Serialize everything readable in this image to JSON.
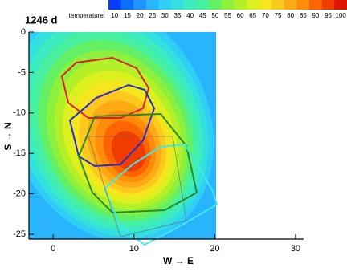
{
  "chart_data": {
    "type": "contour",
    "title": "1246 d",
    "x_label": "W → E",
    "y_label": "S → N",
    "legend_label": "temperature:",
    "levels": [
      10,
      15,
      20,
      25,
      30,
      35,
      40,
      45,
      50,
      55,
      60,
      65,
      70,
      75,
      80,
      85,
      90,
      95,
      100
    ],
    "colors": [
      "#0a3cff",
      "#0a6eff",
      "#1e96ff",
      "#28b4ff",
      "#30cdf5",
      "#32e0e0",
      "#3cecc0",
      "#46f0a0",
      "#64f064",
      "#8cf03c",
      "#b4f028",
      "#dcf01e",
      "#f5e61e",
      "#ffc81e",
      "#ffaa14",
      "#ff8c0a",
      "#ff6400",
      "#f03c00",
      "#dc1400"
    ],
    "xlim": [
      -3,
      31
    ],
    "ylim": [
      -25.6,
      0
    ],
    "xticks": [
      0,
      10,
      20,
      30
    ],
    "yticks": [
      0,
      -5,
      -10,
      -15,
      -20,
      -25
    ]
  }
}
